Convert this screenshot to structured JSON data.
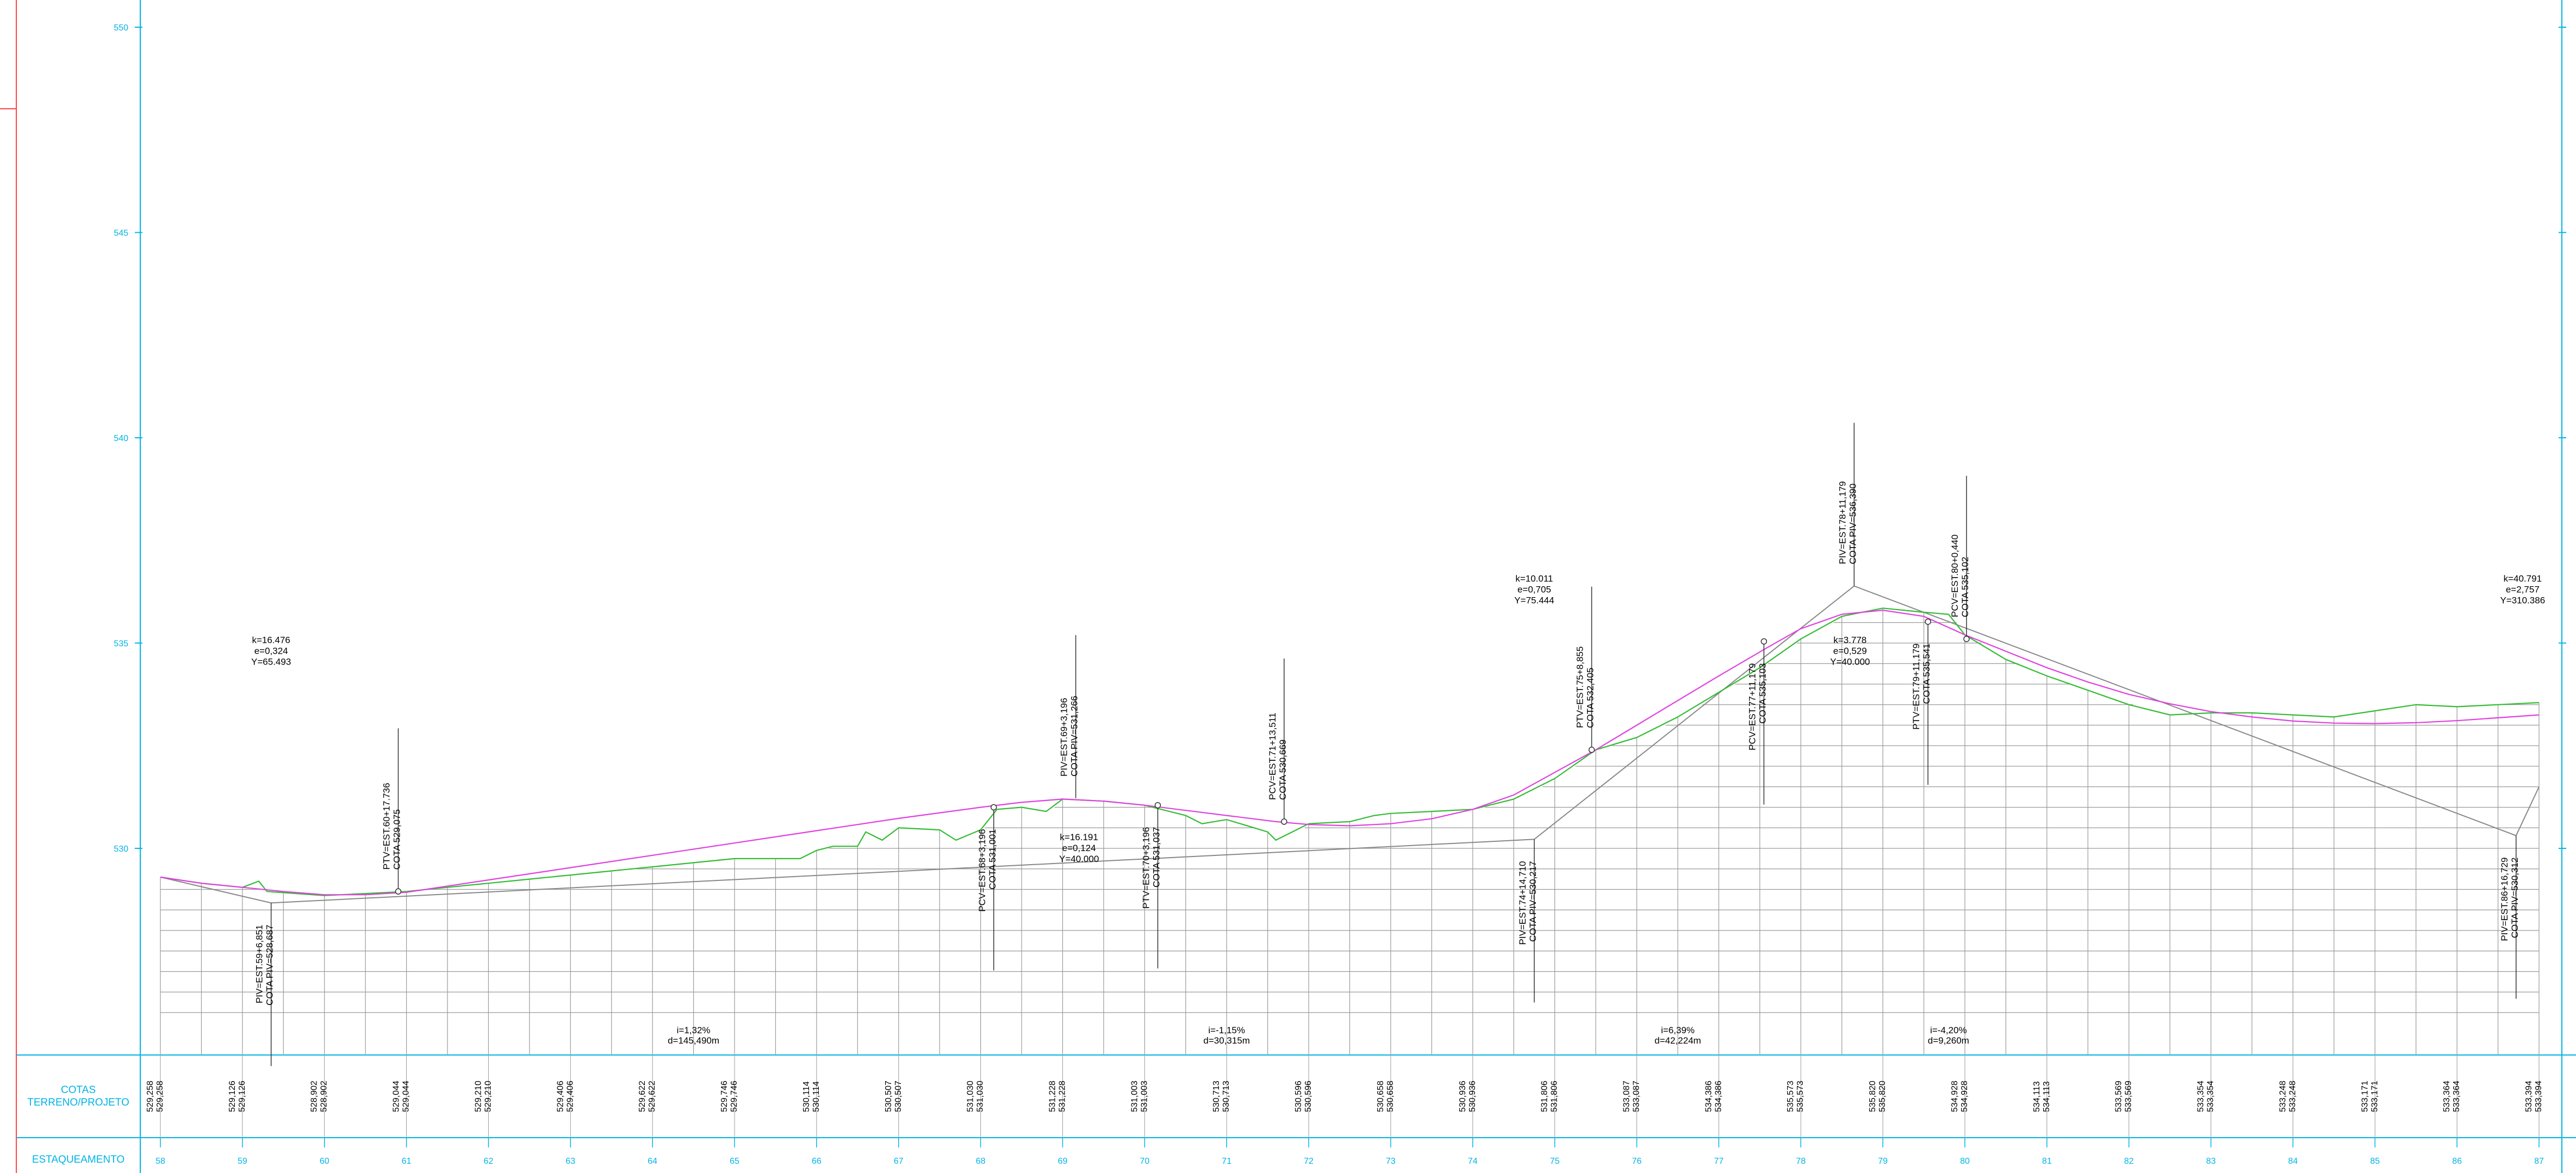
{
  "chart_data": {
    "type": "line",
    "ylim": [
      526,
      550
    ],
    "y_ticks": [
      530,
      535,
      540,
      545,
      550
    ],
    "stations": [
      "58",
      "59",
      "60",
      "61",
      "62",
      "63",
      "64",
      "65",
      "66",
      "67",
      "68",
      "69",
      "70",
      "71",
      "72",
      "73",
      "74",
      "75",
      "76",
      "77",
      "78",
      "79",
      "80",
      "81",
      "82",
      "83",
      "84",
      "85",
      "86",
      "87"
    ],
    "x_range": [
      58.0,
      87.0
    ],
    "series": [
      {
        "role": "terrain",
        "color": "#33bb33",
        "points": [
          [
            58,
            529.3
          ],
          [
            58.5,
            529.15
          ],
          [
            59,
            529.05
          ],
          [
            59.2,
            529.2
          ],
          [
            59.3,
            528.95
          ],
          [
            60,
            528.85
          ],
          [
            60.5,
            528.9
          ],
          [
            61,
            528.95
          ],
          [
            61.5,
            529.05
          ],
          [
            62,
            529.15
          ],
          [
            62.5,
            529.25
          ],
          [
            63,
            529.35
          ],
          [
            63.5,
            529.45
          ],
          [
            64,
            529.55
          ],
          [
            64.5,
            529.65
          ],
          [
            65,
            529.75
          ],
          [
            65.5,
            529.75
          ],
          [
            65.8,
            529.75
          ],
          [
            66,
            529.95
          ],
          [
            66.2,
            530.05
          ],
          [
            66.5,
            530.05
          ],
          [
            66.6,
            530.4
          ],
          [
            66.8,
            530.2
          ],
          [
            67,
            530.5
          ],
          [
            67.5,
            530.45
          ],
          [
            67.7,
            530.2
          ],
          [
            68,
            530.45
          ],
          [
            68.2,
            530.95
          ],
          [
            68.5,
            531.0
          ],
          [
            68.8,
            530.9
          ],
          [
            69,
            531.2
          ],
          [
            69.5,
            531.15
          ],
          [
            70,
            531.05
          ],
          [
            70.5,
            530.8
          ],
          [
            70.7,
            530.6
          ],
          [
            71,
            530.7
          ],
          [
            71.5,
            530.4
          ],
          [
            71.6,
            530.2
          ],
          [
            72,
            530.6
          ],
          [
            72.5,
            530.65
          ],
          [
            72.8,
            530.8
          ],
          [
            73,
            530.85
          ],
          [
            73.5,
            530.9
          ],
          [
            74,
            530.95
          ],
          [
            74.5,
            531.2
          ],
          [
            75,
            531.7
          ],
          [
            75.5,
            532.4
          ],
          [
            76,
            532.7
          ],
          [
            76.5,
            533.2
          ],
          [
            77,
            533.8
          ],
          [
            77.5,
            534.4
          ],
          [
            78,
            535.1
          ],
          [
            78.5,
            535.65
          ],
          [
            79,
            535.85
          ],
          [
            79.5,
            535.75
          ],
          [
            79.8,
            535.7
          ],
          [
            80,
            535.2
          ],
          [
            80.5,
            534.6
          ],
          [
            81,
            534.2
          ],
          [
            81.5,
            533.85
          ],
          [
            82,
            533.5
          ],
          [
            82.5,
            533.25
          ],
          [
            83,
            533.3
          ],
          [
            83.5,
            533.3
          ],
          [
            84,
            533.25
          ],
          [
            84.5,
            533.2
          ],
          [
            85,
            533.35
          ],
          [
            85.5,
            533.5
          ],
          [
            86,
            533.45
          ],
          [
            86.5,
            533.5
          ],
          [
            87,
            533.55
          ]
        ]
      },
      {
        "role": "project",
        "color": "#e040e0",
        "points": [
          [
            58,
            529.3
          ],
          [
            58.5,
            529.15
          ],
          [
            59,
            529.05
          ],
          [
            59.5,
            528.95
          ],
          [
            60,
            528.87
          ],
          [
            60.5,
            528.87
          ],
          [
            61,
            528.93
          ],
          [
            62,
            529.23
          ],
          [
            63,
            529.53
          ],
          [
            64,
            529.83
          ],
          [
            65,
            530.13
          ],
          [
            66,
            530.43
          ],
          [
            67,
            530.73
          ],
          [
            68,
            531.0
          ],
          [
            68.5,
            531.12
          ],
          [
            69,
            531.2
          ],
          [
            69.5,
            531.15
          ],
          [
            70,
            531.05
          ],
          [
            71,
            530.8
          ],
          [
            71.6,
            530.65
          ],
          [
            72,
            530.58
          ],
          [
            72.5,
            530.55
          ],
          [
            73,
            530.6
          ],
          [
            73.5,
            530.72
          ],
          [
            74,
            530.95
          ],
          [
            74.5,
            531.3
          ],
          [
            75,
            531.85
          ],
          [
            75.5,
            532.4
          ],
          [
            76,
            533.0
          ],
          [
            76.5,
            533.6
          ],
          [
            77,
            534.2
          ],
          [
            77.6,
            534.9
          ],
          [
            78,
            535.35
          ],
          [
            78.5,
            535.7
          ],
          [
            79,
            535.8
          ],
          [
            79.5,
            535.65
          ],
          [
            80,
            535.2
          ],
          [
            80.5,
            534.8
          ],
          [
            81,
            534.4
          ],
          [
            81.5,
            534.05
          ],
          [
            82,
            533.75
          ],
          [
            82.5,
            533.52
          ],
          [
            83,
            533.33
          ],
          [
            83.5,
            533.2
          ],
          [
            84,
            533.1
          ],
          [
            84.5,
            533.05
          ],
          [
            85,
            533.04
          ],
          [
            85.5,
            533.06
          ],
          [
            86,
            533.11
          ],
          [
            86.5,
            533.18
          ],
          [
            87,
            533.25
          ]
        ]
      },
      {
        "role": "tangents",
        "color": "#888888",
        "points": [
          [
            58,
            529.3
          ],
          [
            59.35,
            528.67
          ],
          [
            74.75,
            530.22
          ],
          [
            78.65,
            536.39
          ],
          [
            86.72,
            530.31
          ],
          [
            87,
            531.5
          ]
        ]
      }
    ],
    "piv_markers": [
      {
        "x": 59.35,
        "y": 528.67
      },
      {
        "x": 74.75,
        "y": 530.22
      },
      {
        "x": 78.65,
        "y": 536.39
      },
      {
        "x": 86.72,
        "y": 530.31
      }
    ],
    "curve_points": [
      {
        "x": 60.9,
        "y": 528.95,
        "lines": [
          "PTV=EST.60+17.736",
          "COTA 529,075"
        ]
      },
      {
        "x": 68.16,
        "y": 531.0,
        "lines": [
          "PCV=EST.68+3,196",
          "COTA 531,001"
        ]
      },
      {
        "x": 69.16,
        "y": 531.22,
        "lines": [
          "PIV=EST.69+3,196",
          "COTA PIV=531,266"
        ]
      },
      {
        "x": 70.16,
        "y": 531.05,
        "lines": [
          "PTV=EST.70+3,196",
          "COTA 531,037"
        ]
      },
      {
        "x": 71.7,
        "y": 530.65,
        "lines": [
          "PCV=EST.71+13,511",
          "COTA 530,669"
        ]
      },
      {
        "x": 75.45,
        "y": 532.4,
        "lines": [
          "PTV=EST.75+8,855",
          "COTA 532,405"
        ]
      },
      {
        "x": 77.55,
        "y": 535.04,
        "lines": [
          "PCV=EST.77+11,179",
          "COTA 535,103"
        ]
      },
      {
        "x": 79.55,
        "y": 535.52,
        "lines": [
          "PTV=EST.79+11,179",
          "COTA 535,541"
        ]
      },
      {
        "x": 80.02,
        "y": 535.1,
        "lines": [
          "PCV=EST.80+0,440",
          "COTA 535,102"
        ]
      },
      {
        "x": 59.35,
        "y": 528.67,
        "lines": [
          "PIV=EST.59+6,851",
          "COTA PIV=528,687"
        ]
      },
      {
        "x": 74.75,
        "y": 530.22,
        "lines": [
          "PIV=EST.74+14,710",
          "COTA PIV=530,217"
        ]
      },
      {
        "x": 78.65,
        "y": 536.39,
        "lines": [
          "PIV=EST.78+11,179",
          "COTA PIV=536,390"
        ]
      },
      {
        "x": 86.72,
        "y": 530.31,
        "lines": [
          "PIV=EST.86+16,729",
          "COTA PIV=530,312"
        ]
      }
    ],
    "curve_params": [
      {
        "x": 59.35,
        "y": 535.0,
        "lines": [
          "k=16.476",
          "e=0,324",
          "Y=65.493"
        ]
      },
      {
        "x": 69.2,
        "y": 530.2,
        "lines": [
          "k=16.191",
          "e=0,124",
          "Y=40.000"
        ]
      },
      {
        "x": 74.75,
        "y": 536.5,
        "lines": [
          "k=10.011",
          "e=0,705",
          "Y=75.444"
        ]
      },
      {
        "x": 78.6,
        "y": 535.0,
        "lines": [
          "k=3.778",
          "e=0,529",
          "Y=40.000"
        ]
      },
      {
        "x": 86.8,
        "y": 536.5,
        "lines": [
          "k=40.791",
          "e=2,757",
          "Y=310.386"
        ]
      }
    ],
    "grade_labels": [
      {
        "x": 64.5,
        "lines": [
          "i=1,32%",
          "d=145,490m"
        ]
      },
      {
        "x": 71.0,
        "lines": [
          "i=-1,15%",
          "d=30,315m"
        ]
      },
      {
        "x": 76.5,
        "lines": [
          "i=6,39%",
          "d=42,224m"
        ]
      },
      {
        "x": 79.8,
        "lines": [
          "i=-4,20%",
          "d=9,260m"
        ]
      }
    ],
    "elevations": [
      [
        "529,258",
        "529,258"
      ],
      [
        "529,126",
        "529,126"
      ],
      [
        "528,902",
        "528,902"
      ],
      [
        "529,044",
        "529,044"
      ],
      [
        "529,210",
        "529,210"
      ],
      [
        "529,406",
        "529,406"
      ],
      [
        "529,622",
        "529,622"
      ],
      [
        "529,746",
        "529,746"
      ],
      [
        "530,114",
        "530,114"
      ],
      [
        "530,507",
        "530,507"
      ],
      [
        "531,030",
        "531,030"
      ],
      [
        "531,228",
        "531,228"
      ],
      [
        "531,003",
        "531,003"
      ],
      [
        "530,713",
        "530,713"
      ],
      [
        "530,596",
        "530,596"
      ],
      [
        "530,658",
        "530,658"
      ],
      [
        "530,936",
        "530,936"
      ],
      [
        "531,806",
        "531,806"
      ],
      [
        "533,087",
        "533,087"
      ],
      [
        "534,386",
        "534,386"
      ],
      [
        "535,573",
        "535,573"
      ],
      [
        "535,820",
        "535,820"
      ],
      [
        "534,928",
        "534,928"
      ],
      [
        "534,113",
        "534,113"
      ],
      [
        "533,569",
        "533,569"
      ],
      [
        "533,354",
        "533,354"
      ],
      [
        "533,248",
        "533,248"
      ],
      [
        "533,171",
        "533,171"
      ],
      [
        "533,364",
        "533,364"
      ],
      [
        "533,394",
        "533,394"
      ]
    ]
  },
  "footer": {
    "cotas_label_1": "COTAS",
    "cotas_label_2": "TERRENO/PROJETO",
    "estaqueamento_label": "ESTAQUEAMENTO"
  },
  "colors": {
    "frame": "#00b4e6",
    "grid": "#9a9a9a",
    "terrain": "#33bb33",
    "project": "#e040e0",
    "tangent": "#888888",
    "red_border": "#ff4444"
  }
}
